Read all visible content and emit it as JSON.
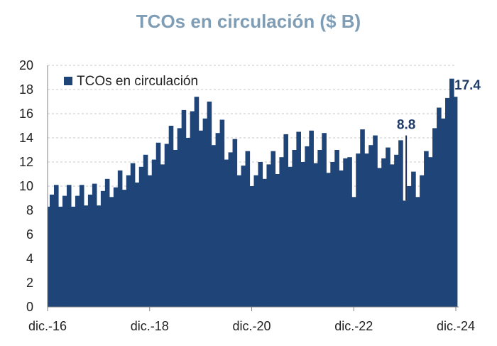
{
  "chart_data": {
    "type": "bar",
    "title": "TCOs en circulación ($ B)",
    "xlabel": "",
    "ylabel": "",
    "ylim": [
      0,
      20
    ],
    "y_ticks": [
      0,
      2,
      4,
      6,
      8,
      10,
      12,
      14,
      16,
      18,
      20
    ],
    "x_tick_labels": [
      "dic.-16",
      "dic.-18",
      "dic.-20",
      "dic.-22",
      "dic.-24"
    ],
    "grid": "horizontal dashed",
    "legend_position": "top-left",
    "series": [
      {
        "name": "TCOs en circulación",
        "color": "#1f4578",
        "values": [
          8.3,
          9.3,
          10.1,
          8.3,
          9.2,
          10.1,
          8.3,
          9.2,
          10.1,
          8.4,
          9.3,
          10.2,
          8.4,
          9.6,
          10.6,
          9.1,
          9.9,
          11.3,
          9.7,
          10.9,
          11.9,
          10.3,
          11.6,
          12.6,
          10.9,
          12.2,
          13.6,
          11.8,
          13.5,
          15.0,
          13.0,
          14.8,
          16.3,
          14.0,
          16.2,
          17.4,
          14.6,
          15.6,
          17.0,
          13.4,
          14.4,
          15.5,
          12.2,
          12.8,
          13.9,
          10.9,
          11.7,
          12.9,
          10.0,
          10.9,
          12.0,
          10.6,
          11.8,
          12.9,
          11.0,
          12.4,
          14.3,
          11.6,
          13.0,
          14.5,
          12.0,
          13.3,
          14.6,
          11.9,
          13.0,
          14.4,
          11.1,
          12.0,
          13.0,
          11.3,
          12.3,
          12.4,
          9.1,
          12.7,
          14.7,
          12.7,
          13.4,
          14.2,
          11.5,
          12.3,
          13.2,
          11.8,
          12.6,
          13.8,
          8.8,
          10.0,
          11.2,
          9.1,
          10.9,
          12.9,
          12.4,
          14.8,
          16.5,
          15.6,
          17.3,
          18.9,
          17.4
        ]
      }
    ],
    "annotations": [
      {
        "text": "8.8",
        "bar_index": 84
      },
      {
        "text": "17.4",
        "bar_index": 96
      }
    ]
  }
}
